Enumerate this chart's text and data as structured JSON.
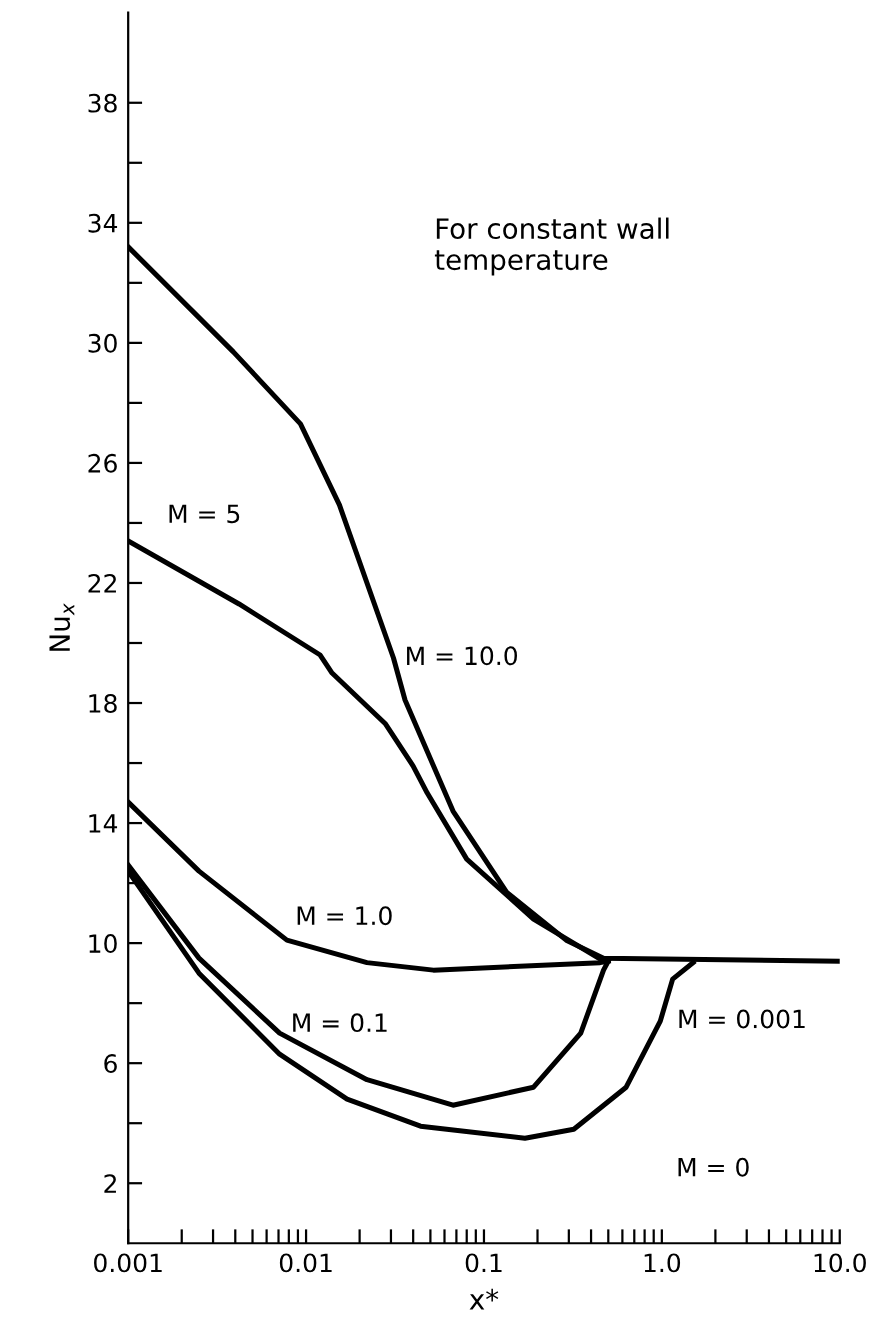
{
  "chart_data": {
    "type": "line",
    "xlabel": "x*",
    "ylabel": "Nu$_{x}$",
    "log": "x",
    "grid": false,
    "marker": "none",
    "line_style": "solid",
    "xlim": [
      0.001,
      10
    ],
    "ylim": [
      0,
      41
    ],
    "xticks": [
      {
        "value": 0.001,
        "label": "0.001"
      },
      {
        "value": 0.002,
        "label": null
      },
      {
        "value": 0.003,
        "label": null
      },
      {
        "value": 0.004,
        "label": null
      },
      {
        "value": 0.005,
        "label": null
      },
      {
        "value": 0.006,
        "label": null
      },
      {
        "value": 0.007,
        "label": null
      },
      {
        "value": 0.008,
        "label": null
      },
      {
        "value": 0.009,
        "label": null
      },
      {
        "value": 0.01,
        "label": "0.01"
      },
      {
        "value": 0.02,
        "label": null
      },
      {
        "value": 0.03,
        "label": null
      },
      {
        "value": 0.04,
        "label": null
      },
      {
        "value": 0.05,
        "label": null
      },
      {
        "value": 0.06,
        "label": null
      },
      {
        "value": 0.07,
        "label": null
      },
      {
        "value": 0.08,
        "label": null
      },
      {
        "value": 0.09,
        "label": null
      },
      {
        "value": 0.1,
        "label": "0.1"
      },
      {
        "value": 0.2,
        "label": null
      },
      {
        "value": 0.3,
        "label": null
      },
      {
        "value": 0.4,
        "label": null
      },
      {
        "value": 0.5,
        "label": null
      },
      {
        "value": 0.6,
        "label": null
      },
      {
        "value": 0.7,
        "label": null
      },
      {
        "value": 0.8,
        "label": null
      },
      {
        "value": 0.9,
        "label": null
      },
      {
        "value": 1,
        "label": "1.0"
      },
      {
        "value": 2,
        "label": null
      },
      {
        "value": 3,
        "label": null
      },
      {
        "value": 4,
        "label": null
      },
      {
        "value": 5,
        "label": null
      },
      {
        "value": 6,
        "label": null
      },
      {
        "value": 7,
        "label": null
      },
      {
        "value": 8,
        "label": null
      },
      {
        "value": 9,
        "label": null
      },
      {
        "value": 10,
        "label": "10.0"
      }
    ],
    "yticks": [
      2,
      {
        "value": 4,
        "label": null
      },
      6,
      {
        "value": 8,
        "label": null
      },
      10,
      {
        "value": 12,
        "label": null
      },
      14,
      {
        "value": 16,
        "label": null
      },
      18,
      {
        "value": 20,
        "label": null
      },
      22,
      {
        "value": 24,
        "label": null
      },
      26,
      {
        "value": 28,
        "label": null
      },
      30,
      {
        "value": 32,
        "label": null
      },
      34,
      {
        "value": 36,
        "label": null
      },
      38
    ],
    "series": [
      {
        "name": "M = 10.0",
        "color": "#000000",
        "x": [
          0.001,
          0.0039,
          0.0093,
          0.0154,
          0.031,
          0.036,
          0.067,
          0.134,
          0.29,
          0.47,
          10
        ],
        "values": [
          33.2,
          29.7,
          27.3,
          24.6,
          19.5,
          18.1,
          14.4,
          11.7,
          10.1,
          9.5,
          9.4
        ]
      },
      {
        "name": "M = 5",
        "color": "#000000",
        "x": [
          0.001,
          0.0042,
          0.012,
          0.014,
          0.028,
          0.04,
          0.048,
          0.08,
          0.19,
          0.47
        ],
        "values": [
          23.4,
          21.3,
          19.6,
          19.0,
          17.3,
          15.9,
          15.0,
          12.8,
          10.8,
          9.4
        ]
      },
      {
        "name": "M = 1.0",
        "color": "#000000",
        "x": [
          0.001,
          0.0025,
          0.0078,
          0.022,
          0.052,
          0.45,
          0.5
        ],
        "values": [
          14.7,
          12.4,
          10.1,
          9.35,
          9.1,
          9.35,
          9.4
        ]
      },
      {
        "name": "M = 0.1",
        "color": "#000000",
        "x": [
          0.001,
          0.0025,
          0.0071,
          0.022,
          0.067,
          0.19,
          0.35,
          0.47,
          0.5
        ],
        "values": [
          12.6,
          9.5,
          7.0,
          5.45,
          4.6,
          5.2,
          7.0,
          9.1,
          9.4
        ]
      },
      {
        "name": "M = 0.001",
        "color": "#000000",
        "x": [
          0.001,
          0.0025,
          0.0071,
          0.017,
          0.044,
          0.17,
          0.32,
          0.63,
          0.98,
          1.15,
          1.5
        ],
        "values": [
          12.4,
          9.0,
          6.3,
          4.8,
          3.9,
          3.5,
          3.8,
          5.2,
          7.4,
          8.8,
          9.35
        ]
      }
    ],
    "annotations": [
      "For constant wall\ntemperature",
      "M = 0"
    ]
  }
}
